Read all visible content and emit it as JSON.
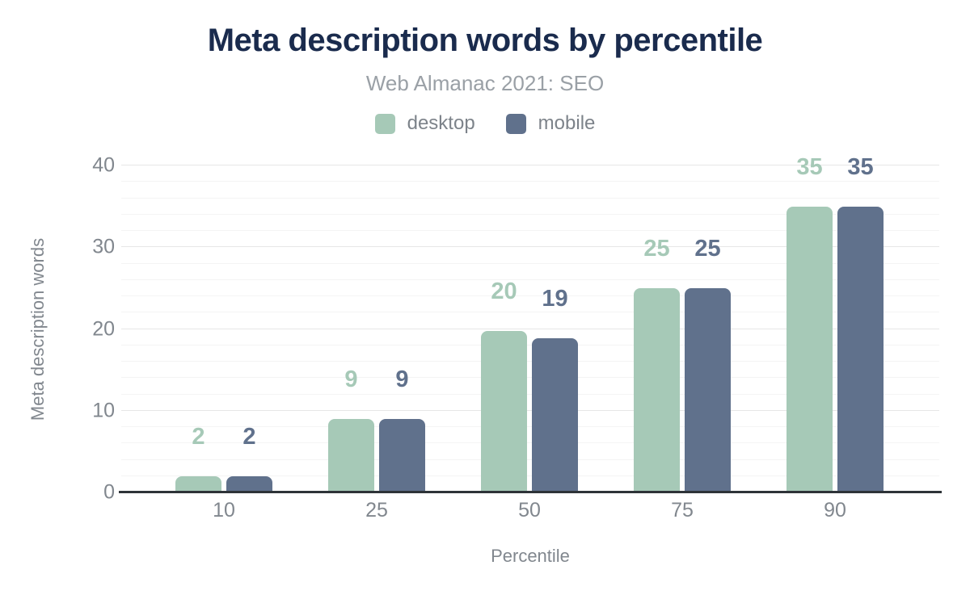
{
  "chart_data": {
    "type": "bar",
    "title": "Meta description words by percentile",
    "subtitle": "Web Almanac 2021: SEO",
    "xlabel": "Percentile",
    "ylabel": "Meta description words",
    "categories": [
      "10",
      "25",
      "50",
      "75",
      "90"
    ],
    "series": [
      {
        "name": "desktop",
        "color": "#a6c9b7",
        "values": [
          2,
          9,
          19.8,
          25,
          35
        ],
        "labels": [
          "2",
          "9",
          "20",
          "25",
          "35"
        ]
      },
      {
        "name": "mobile",
        "color": "#60718c",
        "values": [
          2,
          9,
          18.9,
          25,
          35
        ],
        "labels": [
          "2",
          "9",
          "19",
          "25",
          "35"
        ]
      }
    ],
    "ylim": [
      0,
      40
    ],
    "yticks": [
      0,
      10,
      20,
      30,
      40
    ],
    "minor_tick_step": 2,
    "grid": true,
    "legend_position": "top"
  },
  "colors": {
    "title": "#1a2b4d",
    "subtitle": "#9aa0a6",
    "axis_text": "#81878e",
    "legend_text": "#7d838a",
    "grid_major": "#e7e7e7",
    "grid_minor": "#f4f4f4",
    "axis_line": "#2e3338",
    "background": "#ffffff"
  }
}
